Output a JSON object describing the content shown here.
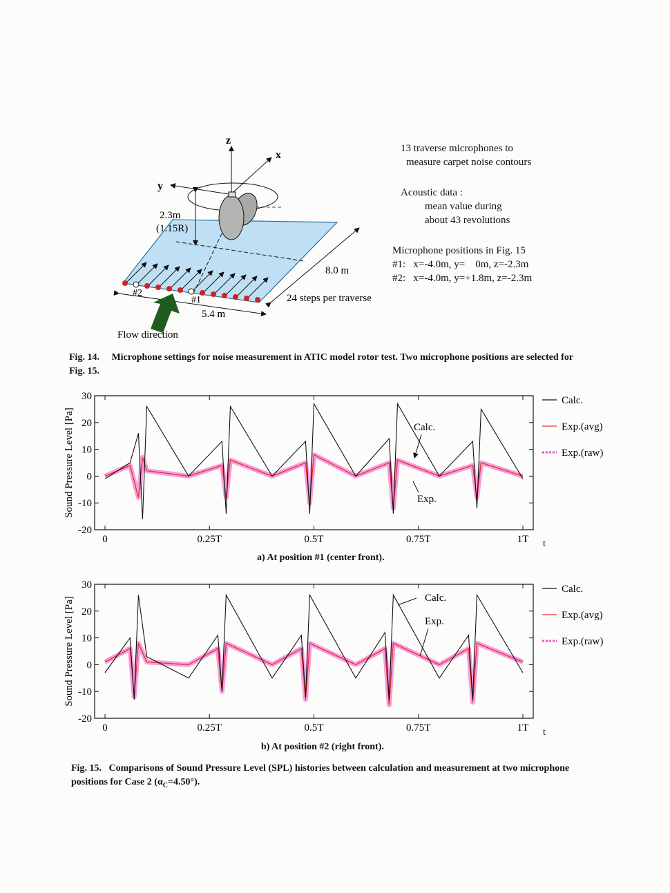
{
  "fig14": {
    "diagram": {
      "axis_z": "z",
      "axis_x": "x",
      "axis_y": "y",
      "height_label": "2.3m",
      "height_label_r": "(1.15R)",
      "length_label": "8.0 m",
      "width_label": "5.4 m",
      "steps_label": "24 steps per traverse",
      "mic2_label": "#2",
      "mic1_label": "#1",
      "flow_label": "Flow direction"
    },
    "notes": {
      "line1": "13 traverse microphones to",
      "line2": "measure carpet noise contours",
      "line3": "Acoustic data :",
      "line4": "mean value during",
      "line5": "about 43 revolutions",
      "line6": "Microphone positions in Fig. 15",
      "line7": "#1:   x=-4.0m, y=    0m, z=-2.3m",
      "line8": "#2:   x=-4.0m, y=+1.8m, z=-2.3m"
    },
    "caption_label": "Fig. 14.",
    "caption_text": "Microphone settings for noise measurement in ATIC model rotor test. Two microphone positions are selected for Fig. 15."
  },
  "fig15": {
    "caption_label": "Fig. 15.",
    "caption_text": "Comparisons of Sound Pressure Level (SPL) histories between calculation and measurement at two microphone positions for Case 2 (α",
    "caption_sub": "C",
    "caption_end": "=4.50°)."
  },
  "colors": {
    "calc": "#111111",
    "exp_avg": "#e8302c",
    "exp_raw": "#f050c8",
    "plane": "#bfe0f4",
    "mic": "#d42020",
    "arrow": "#1f5c1f"
  },
  "chart_data": [
    {
      "type": "line",
      "title": "a) At position #1 (center front).",
      "ylabel": "Sound Pressure Level [Pa]",
      "xlabel": "t",
      "ylim": [
        -20,
        30
      ],
      "yticks": [
        "30",
        "20",
        "10",
        "0",
        "-10",
        "-20"
      ],
      "xticks": [
        "0",
        "0.25T",
        "0.5T",
        "0.75T",
        "1T"
      ],
      "legend": [
        "Calc.",
        "Exp.(avg)",
        "Exp.(raw)"
      ],
      "annotations": [
        "Calc.",
        "Exp."
      ],
      "x": [
        0,
        0.06,
        0.08,
        0.09,
        0.1,
        0.2,
        0.28,
        0.29,
        0.3,
        0.4,
        0.48,
        0.49,
        0.5,
        0.6,
        0.68,
        0.69,
        0.7,
        0.8,
        0.88,
        0.89,
        0.9,
        1.0
      ],
      "series": [
        {
          "name": "Calc.",
          "values": [
            -1,
            5,
            16,
            -16,
            26,
            0,
            13,
            -14,
            26,
            0,
            13,
            -14,
            27,
            0,
            14,
            -14,
            27,
            0,
            13,
            -12,
            25,
            -1
          ]
        },
        {
          "name": "Exp.(avg)",
          "values": [
            0,
            4,
            -8,
            7,
            2,
            0,
            4,
            -8,
            6,
            0,
            5,
            -10,
            8,
            0,
            5,
            -12,
            6,
            0,
            4,
            -8,
            5,
            0
          ]
        }
      ]
    },
    {
      "type": "line",
      "title": "b) At position #2 (right front).",
      "ylabel": "Sound Pressure Level [Pa]",
      "xlabel": "t",
      "ylim": [
        -20,
        30
      ],
      "yticks": [
        "30",
        "20",
        "10",
        "0",
        "-10",
        "-20"
      ],
      "xticks": [
        "0",
        "0.25T",
        "0.5T",
        "0.75T",
        "1T"
      ],
      "legend": [
        "Calc.",
        "Exp.(avg)",
        "Exp.(raw)"
      ],
      "annotations": [
        "Calc.",
        "Exp."
      ],
      "x": [
        0,
        0.06,
        0.07,
        0.08,
        0.1,
        0.2,
        0.27,
        0.28,
        0.29,
        0.4,
        0.47,
        0.48,
        0.49,
        0.6,
        0.67,
        0.68,
        0.69,
        0.8,
        0.87,
        0.88,
        0.89,
        1.0
      ],
      "series": [
        {
          "name": "Calc.",
          "values": [
            -3,
            10,
            -13,
            26,
            3,
            -5,
            11,
            -10,
            26,
            -5,
            11,
            -12,
            26,
            -5,
            12,
            -13,
            26,
            -5,
            11,
            -13,
            26,
            -3
          ]
        },
        {
          "name": "Exp.(avg)",
          "values": [
            1,
            6,
            -12,
            8,
            1,
            0,
            6,
            -10,
            8,
            0,
            6,
            -13,
            8,
            0,
            6,
            -15,
            8,
            0,
            6,
            -14,
            8,
            1
          ]
        }
      ]
    }
  ]
}
